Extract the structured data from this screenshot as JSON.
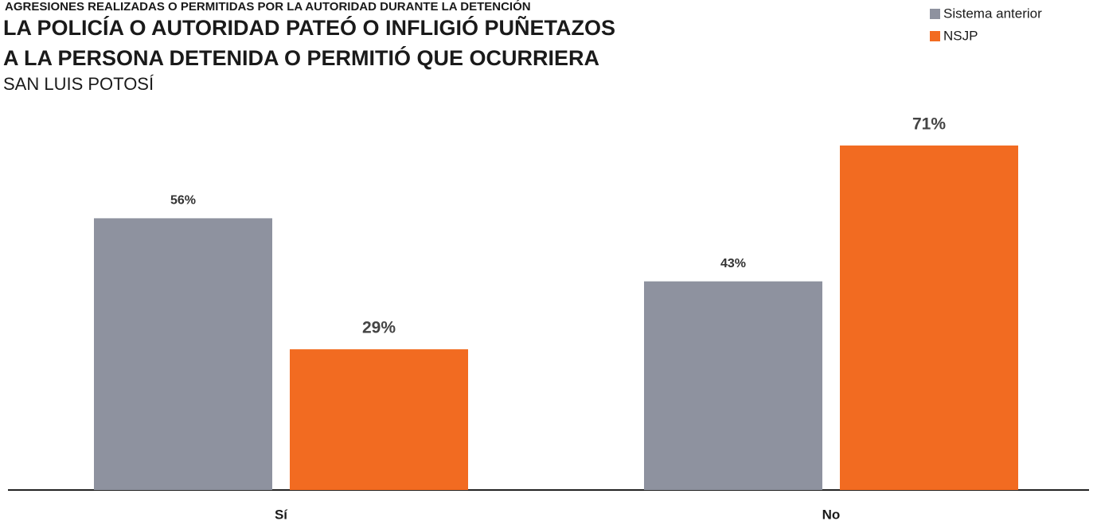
{
  "chart_data": {
    "type": "bar",
    "supertitle": "AGRESIONES REALIZADAS O PERMITIDAS POR LA AUTORIDAD DURANTE LA DETENCIÓN",
    "title": [
      "LA POLICÍA O AUTORIDAD PATEÓ O INFLIGIÓ PUÑETAZOS",
      "A LA PERSONA DETENIDA O PERMITIÓ QUE OCURRIERA"
    ],
    "subtitle": "SAN LUIS POTOSÍ",
    "categories": [
      "Sí",
      "No"
    ],
    "series": [
      {
        "name": "Sistema anterior",
        "color": "#8e929f",
        "values": [
          56,
          43
        ],
        "value_labels": [
          "56%",
          "43%"
        ]
      },
      {
        "name": "NSJP",
        "color": "#f26b21",
        "values": [
          29,
          71
        ],
        "value_labels": [
          "29%",
          "71%"
        ]
      }
    ],
    "legend": "top-right"
  }
}
